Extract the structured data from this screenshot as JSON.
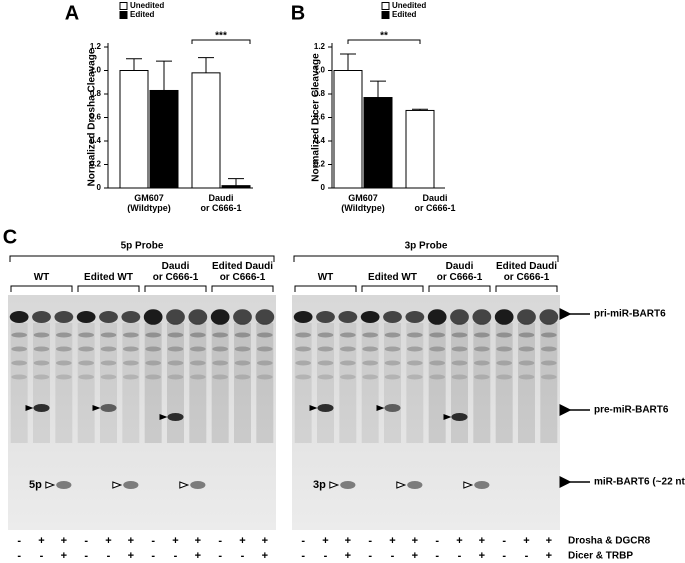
{
  "chart_data": [
    {
      "type": "bar",
      "panel": "A",
      "ylabel": "Normalized Drosha Cleavage",
      "categories": [
        "GM607\n(Wildtype)",
        "Daudi\nor C666-1"
      ],
      "series": [
        {
          "name": "Unedited",
          "color": "#ffffff",
          "values": [
            1.0,
            0.98
          ],
          "errors": [
            0.1,
            0.13
          ]
        },
        {
          "name": "Edited",
          "color": "#000000",
          "values": [
            0.83,
            0.02
          ],
          "errors": [
            0.25,
            0.06
          ]
        }
      ],
      "annotations": [
        "***"
      ],
      "ylim": [
        0,
        1.2
      ],
      "yticks": [
        0,
        0.2,
        0.4,
        0.6,
        0.8,
        {
          "value": 1,
          "label": "1.0"
        },
        1.2
      ]
    },
    {
      "type": "bar",
      "panel": "B",
      "ylabel": "Normalized Dicer Cleavage",
      "categories": [
        "GM607\n(Wildtype)",
        "Daudi\nor C666-1"
      ],
      "series": [
        {
          "name": "Unedited",
          "color": "#ffffff",
          "values": [
            1.0,
            0.66
          ],
          "errors": [
            0.14,
            0.01
          ]
        },
        {
          "name": "Edited",
          "color": "#000000",
          "values": [
            0.77,
            null
          ],
          "errors": [
            0.14,
            null
          ]
        }
      ],
      "annotations": [
        "**"
      ],
      "ylim": [
        0,
        1.2
      ],
      "yticks": [
        0,
        0.2,
        0.4,
        0.6,
        0.8,
        {
          "value": 1,
          "label": "1.0"
        },
        1.2
      ]
    }
  ],
  "gel": {
    "panel": "C",
    "probes": [
      {
        "title": "5p Probe",
        "product": "5p",
        "groups": [
          "WT",
          "Edited WT",
          "Daudi\nor C666-1",
          "Edited Daudi\nor C666-1"
        ]
      },
      {
        "title": "3p Probe",
        "product": "3p",
        "groups": [
          "WT",
          "Edited WT",
          "Daudi\nor C666-1",
          "Edited Daudi\nor C666-1"
        ]
      }
    ],
    "bands": [
      "pri-miR-BART6",
      "pre-miR-BART6",
      "miR-BART6 (~22 nt)"
    ],
    "treatments": [
      {
        "label": "Drosha & DGCR8",
        "lanes": [
          "-",
          "+",
          "+",
          "-",
          "+",
          "+",
          "-",
          "+",
          "+",
          "-",
          "+",
          "+",
          "-",
          "+",
          "+",
          "-",
          "+",
          "+",
          "-",
          "+",
          "+",
          "-",
          "+",
          "+"
        ]
      },
      {
        "label": "Dicer & TRBP",
        "lanes": [
          "-",
          "-",
          "+",
          "-",
          "-",
          "+",
          "-",
          "-",
          "+",
          "-",
          "-",
          "+",
          "-",
          "-",
          "+",
          "-",
          "-",
          "+",
          "-",
          "-",
          "+",
          "-",
          "-",
          "+"
        ]
      }
    ]
  }
}
